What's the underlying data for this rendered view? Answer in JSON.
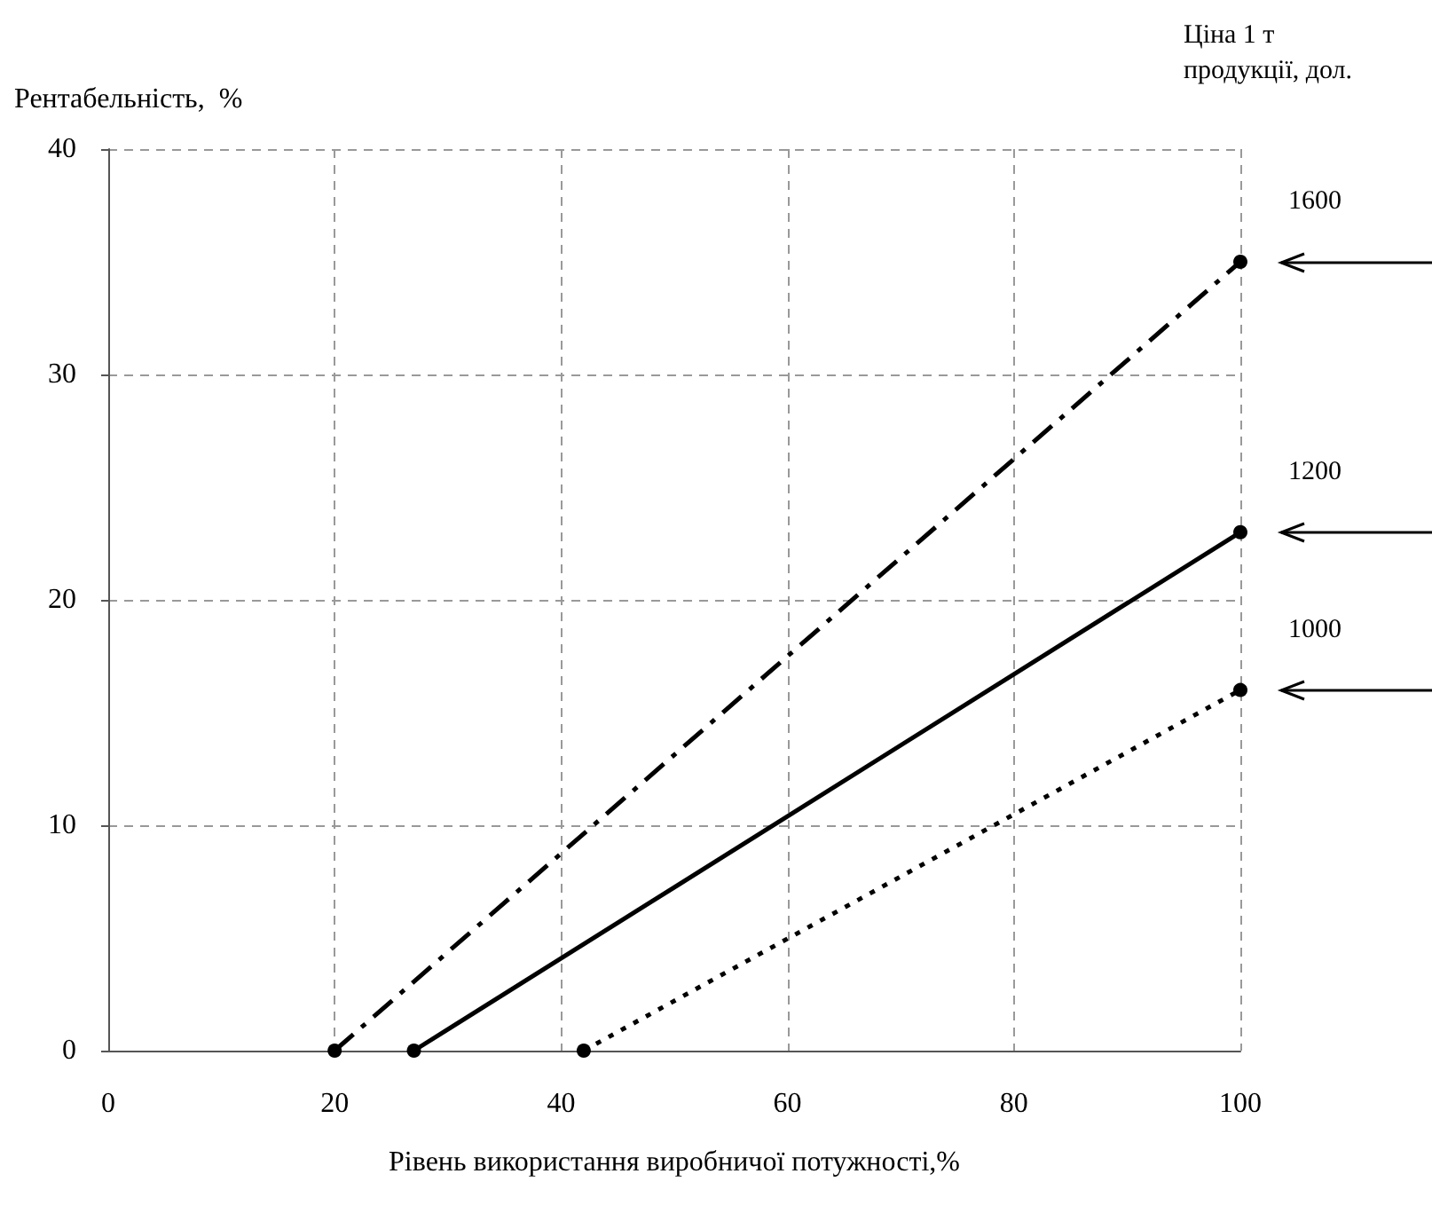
{
  "chart_data": {
    "type": "line",
    "xlabel": "Рівень використання виробничої потужності,%",
    "ylabel": "Рентабельність,  %",
    "legend_title": "Ціна 1 т\nпродукції, дол.",
    "xlim": [
      0,
      100
    ],
    "xticks": [
      0,
      20,
      40,
      60,
      80,
      100
    ],
    "ylim": [
      0,
      40
    ],
    "yticks": [
      0,
      10,
      20,
      30,
      40
    ],
    "grid": true,
    "marker": "circle",
    "legend": false,
    "series": [
      {
        "name": "1600",
        "color": "#000000",
        "line_style": "dashdot",
        "x": [
          20,
          100
        ],
        "values": [
          0,
          35
        ]
      },
      {
        "name": "1200",
        "color": "#000000",
        "line_style": "solid",
        "x": [
          27,
          100
        ],
        "values": [
          0,
          23
        ]
      },
      {
        "name": "1000",
        "color": "#000000",
        "line_style": "dotted",
        "x": [
          42,
          100
        ],
        "values": [
          0,
          16
        ]
      }
    ]
  }
}
